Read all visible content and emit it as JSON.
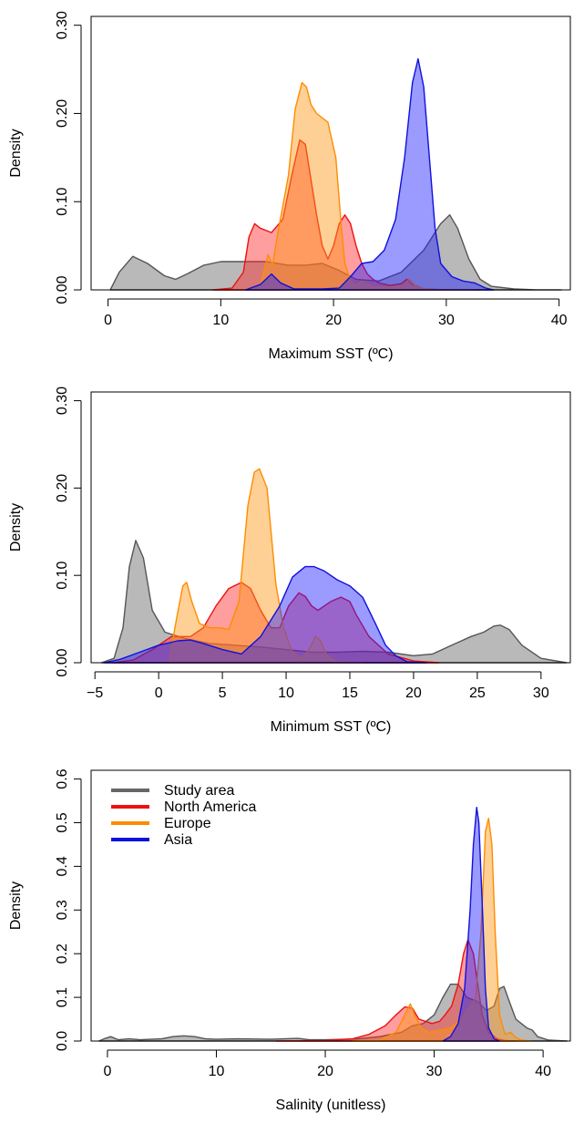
{
  "chart_data": [
    {
      "type": "area",
      "xlabel": "Maximum SST (ºC)",
      "ylabel": "Density",
      "xlim": [
        -1.5,
        41
      ],
      "ylim": [
        0,
        0.31
      ],
      "x_ticks": [
        0,
        10,
        20,
        30,
        40
      ],
      "y_ticks": [
        0.0,
        0.1,
        0.2,
        0.3
      ],
      "y_tick_labels": [
        "0.00",
        "0.10",
        "0.20",
        "0.30"
      ],
      "series": [
        {
          "key": "study_area",
          "color": "#555555",
          "fill": "rgba(128,128,128,0.55)",
          "x": [
            0.2,
            1,
            2.2,
            3.5,
            5,
            6,
            7,
            8.5,
            10,
            12,
            14,
            16,
            17.5,
            19,
            20.5,
            22,
            24,
            26,
            28,
            29.5,
            30.3,
            31,
            32,
            33,
            34,
            36,
            38,
            40.2
          ],
          "y": [
            0,
            0.02,
            0.038,
            0.03,
            0.016,
            0.012,
            0.018,
            0.028,
            0.032,
            0.032,
            0.032,
            0.028,
            0.028,
            0.03,
            0.022,
            0.012,
            0.01,
            0.02,
            0.045,
            0.075,
            0.085,
            0.07,
            0.035,
            0.012,
            0.004,
            0.001,
            0,
            0
          ]
        },
        {
          "key": "north_america",
          "color": "#ee1111",
          "fill": "rgba(255,40,40,0.45)",
          "x": [
            9.3,
            11,
            12,
            12.5,
            13,
            13.5,
            14.5,
            15.5,
            16.3,
            17,
            17.5,
            18,
            18.5,
            19,
            19.5,
            20,
            20.5,
            21,
            21.5,
            22,
            22.5,
            23,
            23.5,
            24,
            25,
            26,
            26.5,
            27,
            28,
            30,
            33
          ],
          "y": [
            0,
            0.002,
            0.02,
            0.06,
            0.075,
            0.07,
            0.065,
            0.08,
            0.13,
            0.17,
            0.165,
            0.125,
            0.085,
            0.05,
            0.035,
            0.05,
            0.075,
            0.085,
            0.075,
            0.05,
            0.03,
            0.018,
            0.012,
            0.008,
            0.005,
            0.007,
            0.012,
            0.006,
            0.001,
            0,
            0
          ]
        },
        {
          "key": "europe",
          "color": "#ff8c00",
          "fill": "rgba(255,150,20,0.45)",
          "x": [
            12.4,
            13.5,
            13.8,
            14.2,
            14.6,
            15,
            16,
            16.6,
            17.2,
            17.6,
            18,
            18.5,
            19.5,
            20.2,
            20.7,
            21,
            21.5,
            22,
            22.5,
            23.5,
            24.5,
            26,
            26.7,
            27.3,
            28,
            29.5,
            32.5
          ],
          "y": [
            0,
            0.005,
            0.02,
            0.04,
            0.028,
            0.06,
            0.13,
            0.205,
            0.235,
            0.23,
            0.21,
            0.2,
            0.19,
            0.15,
            0.07,
            0.03,
            0.01,
            0.005,
            0.01,
            0.003,
            0.003,
            0.004,
            0.012,
            0.004,
            0.001,
            0,
            0
          ]
        },
        {
          "key": "asia",
          "color": "#1010dd",
          "fill": "rgba(30,30,255,0.45)",
          "x": [
            12.2,
            13.5,
            14.5,
            15.3,
            16.5,
            19,
            20.5,
            21.5,
            22.5,
            23.5,
            24.5,
            25.5,
            26.3,
            27,
            27.5,
            28,
            28.5,
            29,
            29.5,
            30.5,
            31.5,
            32.5,
            33.5,
            34.2
          ],
          "y": [
            0,
            0.006,
            0.018,
            0.008,
            0.001,
            0.001,
            0.002,
            0.015,
            0.03,
            0.032,
            0.045,
            0.08,
            0.15,
            0.235,
            0.262,
            0.23,
            0.15,
            0.07,
            0.03,
            0.015,
            0.01,
            0.008,
            0.002,
            0
          ]
        }
      ]
    },
    {
      "type": "area",
      "xlabel": "Minimum SST (ºC)",
      "ylabel": "Density",
      "xlim": [
        -5.3,
        32.3
      ],
      "ylim": [
        0,
        0.31
      ],
      "x_ticks": [
        -5,
        0,
        5,
        10,
        15,
        20,
        25,
        30
      ],
      "x_tick_labels": [
        "−5",
        "0",
        "5",
        "10",
        "15",
        "20",
        "25",
        "30"
      ],
      "y_ticks": [
        0.0,
        0.1,
        0.2,
        0.3
      ],
      "y_tick_labels": [
        "0.00",
        "0.10",
        "0.20",
        "0.30"
      ],
      "series": [
        {
          "key": "study_area",
          "color": "#555555",
          "fill": "rgba(128,128,128,0.55)",
          "x": [
            -4.5,
            -3.5,
            -2.8,
            -2.3,
            -1.8,
            -1.2,
            -0.5,
            0.5,
            2,
            4,
            6,
            8,
            10,
            12,
            14,
            16,
            18,
            20,
            21.5,
            23,
            24.5,
            25.5,
            26.3,
            26.8,
            27.5,
            28.5,
            30,
            32
          ],
          "y": [
            0,
            0.005,
            0.04,
            0.11,
            0.14,
            0.12,
            0.06,
            0.035,
            0.028,
            0.022,
            0.02,
            0.018,
            0.015,
            0.012,
            0.012,
            0.013,
            0.012,
            0.008,
            0.01,
            0.02,
            0.03,
            0.035,
            0.042,
            0.043,
            0.038,
            0.02,
            0.005,
            0
          ]
        },
        {
          "key": "north_america",
          "color": "#ee1111",
          "fill": "rgba(255,40,40,0.45)",
          "x": [
            -3.6,
            -2,
            -0.5,
            1,
            2.5,
            3.5,
            4.5,
            5.5,
            6.5,
            7.2,
            8,
            8.8,
            9.5,
            10.2,
            11,
            11.5,
            12,
            12.5,
            13,
            13.5,
            14.3,
            15,
            15.5,
            16.5,
            18,
            20,
            22
          ],
          "y": [
            0,
            0.003,
            0.015,
            0.03,
            0.03,
            0.04,
            0.065,
            0.085,
            0.092,
            0.085,
            0.06,
            0.04,
            0.04,
            0.065,
            0.08,
            0.076,
            0.065,
            0.06,
            0.065,
            0.07,
            0.075,
            0.07,
            0.055,
            0.03,
            0.01,
            0.002,
            0
          ]
        },
        {
          "key": "europe",
          "color": "#ff8c00",
          "fill": "rgba(255,150,20,0.45)",
          "x": [
            0.8,
            1.4,
            1.9,
            2.2,
            2.6,
            3.2,
            4,
            4.8,
            5.5,
            6.3,
            7,
            7.5,
            7.9,
            8.5,
            9.2,
            9.8,
            10.5,
            11.2,
            11.8,
            12.3,
            12.7,
            13.2,
            14,
            16
          ],
          "y": [
            0,
            0.05,
            0.088,
            0.092,
            0.07,
            0.045,
            0.04,
            0.04,
            0.038,
            0.07,
            0.18,
            0.218,
            0.222,
            0.2,
            0.09,
            0.04,
            0.012,
            0.005,
            0.015,
            0.03,
            0.025,
            0.008,
            0.001,
            0
          ]
        },
        {
          "key": "asia",
          "color": "#1010dd",
          "fill": "rgba(30,30,255,0.45)",
          "x": [
            -4.3,
            -3,
            -1.5,
            0,
            1.5,
            2.5,
            3.5,
            5,
            6.5,
            8,
            9.5,
            10.5,
            11.5,
            12.2,
            13,
            14,
            15,
            16,
            17,
            17.8,
            18.6,
            19.5,
            21
          ],
          "y": [
            0,
            0.004,
            0.012,
            0.02,
            0.025,
            0.026,
            0.022,
            0.015,
            0.01,
            0.03,
            0.065,
            0.098,
            0.11,
            0.11,
            0.105,
            0.095,
            0.088,
            0.075,
            0.045,
            0.02,
            0.008,
            0.001,
            0
          ]
        }
      ]
    },
    {
      "type": "area",
      "xlabel": "Salinity (unitless)",
      "ylabel": "Density",
      "xlim": [
        -1.5,
        42.5
      ],
      "ylim": [
        0,
        0.62
      ],
      "x_ticks": [
        0,
        10,
        20,
        30,
        40
      ],
      "y_ticks": [
        0.0,
        0.1,
        0.2,
        0.3,
        0.4,
        0.5,
        0.6
      ],
      "y_tick_labels": [
        "0.0",
        "0.1",
        "0.2",
        "0.3",
        "0.4",
        "0.5",
        "0.6"
      ],
      "legend": {
        "position": "top-left",
        "entries": [
          {
            "label": "Study area",
            "color": "#666666"
          },
          {
            "label": "North America",
            "color": "#ee1111"
          },
          {
            "label": "Europe",
            "color": "#ff8c00"
          },
          {
            "label": "Asia",
            "color": "#1010dd"
          }
        ]
      },
      "series": [
        {
          "key": "study_area",
          "color": "#555555",
          "fill": "rgba(128,128,128,0.55)",
          "x": [
            -0.8,
            -0.3,
            0.3,
            1,
            2,
            3,
            4,
            5,
            6,
            7,
            8,
            9,
            10,
            12,
            15,
            17.5,
            18.5,
            20,
            23,
            25,
            27,
            28,
            29,
            30,
            30.8,
            31.5,
            32.2,
            33,
            34,
            34.8,
            35.5,
            36,
            36.4,
            36.9,
            37.5,
            38,
            38.5,
            39,
            39.5,
            40.5,
            42.2
          ],
          "y": [
            0,
            0.005,
            0.01,
            0.003,
            0.005,
            0.003,
            0.004,
            0.005,
            0.01,
            0.012,
            0.01,
            0.005,
            0.004,
            0.005,
            0.004,
            0.006,
            0.003,
            0.003,
            0.005,
            0.01,
            0.02,
            0.035,
            0.04,
            0.06,
            0.1,
            0.13,
            0.13,
            0.1,
            0.09,
            0.07,
            0.08,
            0.12,
            0.125,
            0.09,
            0.05,
            0.04,
            0.03,
            0.025,
            0.01,
            0.002,
            0
          ]
        },
        {
          "key": "north_america",
          "color": "#ee1111",
          "fill": "rgba(255,40,40,0.45)",
          "x": [
            15.5,
            20,
            22.5,
            24,
            25.5,
            26.5,
            27.3,
            28,
            28.6,
            29.2,
            29.8,
            30.5,
            31,
            31.6,
            32.2,
            32.7,
            33.1,
            33.6,
            34,
            34.4,
            35,
            35.8,
            36.5,
            37.5
          ],
          "y": [
            0,
            0.001,
            0.005,
            0.015,
            0.035,
            0.06,
            0.078,
            0.075,
            0.05,
            0.045,
            0.04,
            0.045,
            0.06,
            0.08,
            0.13,
            0.2,
            0.232,
            0.2,
            0.13,
            0.06,
            0.02,
            0.005,
            0.001,
            0
          ]
        },
        {
          "key": "europe",
          "color": "#ff8c00",
          "fill": "rgba(255,150,20,0.45)",
          "x": [
            22.5,
            25,
            26.5,
            27.3,
            27.8,
            28.2,
            28.8,
            29.5,
            30.5,
            31.5,
            32.5,
            33.3,
            33.8,
            34.3,
            34.7,
            35,
            35.3,
            35.6,
            36,
            36.5,
            37,
            37.4,
            37.9,
            38.8
          ],
          "y": [
            0,
            0.002,
            0.02,
            0.06,
            0.085,
            0.06,
            0.03,
            0.02,
            0.025,
            0.03,
            0.05,
            0.08,
            0.1,
            0.25,
            0.48,
            0.51,
            0.45,
            0.25,
            0.06,
            0.015,
            0.02,
            0.01,
            0.003,
            0
          ]
        },
        {
          "key": "asia",
          "color": "#1010dd",
          "fill": "rgba(30,30,255,0.45)",
          "x": [
            30.8,
            31.5,
            32.2,
            32.8,
            33.3,
            33.6,
            33.9,
            34.1,
            34.4,
            34.7,
            35,
            35.5,
            36
          ],
          "y": [
            0,
            0.01,
            0.04,
            0.12,
            0.3,
            0.45,
            0.535,
            0.5,
            0.32,
            0.12,
            0.03,
            0.005,
            0
          ]
        }
      ]
    }
  ]
}
